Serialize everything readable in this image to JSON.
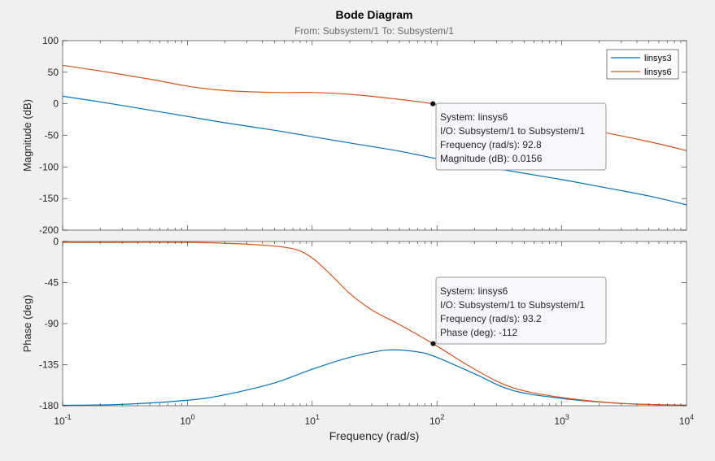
{
  "chart_data": {
    "type": "line",
    "title": "Bode Diagram",
    "subtitle": "From: Subsystem/1  To: Subsystem/1",
    "xlabel": "Frequency  (rad/s)",
    "xscale": "log",
    "xlim": [
      0.1,
      10000
    ],
    "x_ticks": [
      {
        "value": 0.1,
        "base": "10",
        "exp": "-1"
      },
      {
        "value": 1,
        "base": "10",
        "exp": "0"
      },
      {
        "value": 10,
        "base": "10",
        "exp": "1"
      },
      {
        "value": 100,
        "base": "10",
        "exp": "2"
      },
      {
        "value": 1000,
        "base": "10",
        "exp": "3"
      },
      {
        "value": 10000,
        "base": "10",
        "exp": "4"
      }
    ],
    "grid": false,
    "legend_position": "top-right",
    "colors": {
      "linsys3": "#0072BD",
      "linsys6": "#D95319"
    },
    "panels": [
      {
        "id": "magnitude",
        "ylabel": "Magnitude (dB)",
        "ylim": [
          -200,
          100
        ],
        "y_ticks": [
          "100",
          "50",
          "0",
          "-50",
          "-100",
          "-150",
          "-200"
        ],
        "series": [
          {
            "name": "linsys3",
            "x": [
              0.1,
              0.2,
              0.5,
              1,
              2,
              5,
              10,
              20,
              50,
              100,
              200,
              500,
              1000,
              2000,
              5000,
              10000
            ],
            "y": [
              12,
              3,
              -10,
              -20,
              -30,
              -42,
              -52,
              -62,
              -75,
              -87,
              -97,
              -110,
              -120,
              -131,
              -146,
              -160
            ]
          },
          {
            "name": "linsys6",
            "x": [
              0.1,
              0.2,
              0.5,
              1,
              2,
              5,
              10,
              20,
              50,
              93,
              200,
              500,
              1000,
              2000,
              5000,
              10000
            ],
            "y": [
              61,
              52,
              39,
              28,
              21,
              18,
              18,
              15,
              7,
              0,
              -11,
              -24,
              -34,
              -44,
              -60,
              -74
            ]
          }
        ]
      },
      {
        "id": "phase",
        "ylabel": "Phase (deg)",
        "ylim": [
          -180,
          0
        ],
        "y_ticks": [
          "0",
          "-45",
          "-90",
          "-135",
          "-180"
        ],
        "series": [
          {
            "name": "linsys3",
            "x": [
              0.1,
              0.3,
              1,
              2,
              5,
              10,
              20,
              40,
              70,
              100,
              200,
              400,
              1000,
              3000,
              10000
            ],
            "y": [
              -179.5,
              -178.5,
              -174,
              -168,
              -155,
              -140,
              -127,
              -119,
              -121,
              -127,
              -145,
              -163,
              -172,
              -177.5,
              -179.5
            ]
          },
          {
            "name": "linsys6",
            "x": [
              0.1,
              0.3,
              1,
              2,
              4,
              7,
              10,
              15,
              20,
              30,
              50,
              93,
              200,
              400,
              1000,
              3000,
              10000
            ],
            "y": [
              -1,
              -1,
              -1,
              -2,
              -4,
              -8,
              -18,
              -40,
              -57,
              -75,
              -91,
              -112,
              -140,
              -160,
              -171,
              -177.5,
              -179.5
            ]
          }
        ]
      }
    ],
    "annotations": [
      {
        "panel": "magnitude",
        "x": 92.8,
        "y": 0.0156,
        "lines": [
          "System: linsys6",
          "I/O: Subsystem/1 to Subsystem/1",
          "Frequency (rad/s): 92.8",
          "Magnitude (dB): 0.0156"
        ]
      },
      {
        "panel": "phase",
        "x": 93.2,
        "y": -112,
        "lines": [
          "System: linsys6",
          "I/O: Subsystem/1 to Subsystem/1",
          "Frequency (rad/s): 93.2",
          "Phase (deg): -112"
        ]
      }
    ]
  }
}
